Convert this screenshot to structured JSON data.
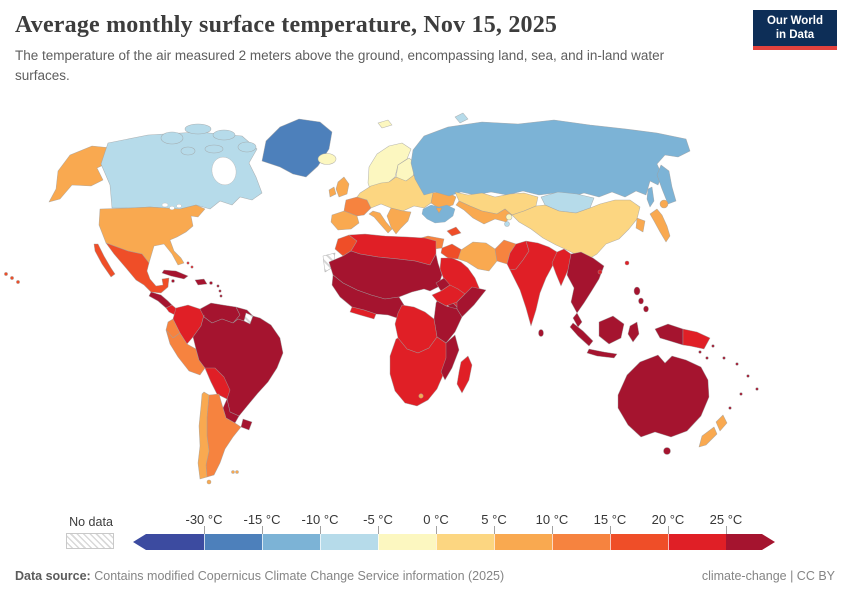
{
  "header": {
    "title": "Average monthly surface temperature, Nov 15, 2025",
    "subtitle": "The temperature of the air measured 2 meters above the ground, encompassing land, sea, and in-land water surfaces.",
    "logo": {
      "line1": "Our World",
      "line2": "in Data",
      "bg_color": "#0d2e57",
      "accent_color": "#e2423d"
    }
  },
  "legend": {
    "no_data_label": "No data",
    "tick_labels": [
      "-30 °C",
      "-15 °C",
      "-10 °C",
      "-5 °C",
      "0 °C",
      "5 °C",
      "10 °C",
      "15 °C",
      "20 °C",
      "25 °C"
    ],
    "band_colors": [
      "#3c4ba0",
      "#4d80bb",
      "#7cb3d6",
      "#b6dbea",
      "#fcf7c0",
      "#fcd681",
      "#f9a950",
      "#f6833f",
      "#ef4e28",
      "#e01f26",
      "#a5142f"
    ],
    "water_color": "#86b5d7"
  },
  "map": {
    "regions": {
      "alaska": 7,
      "canada": 4,
      "canadian-arctic": 4,
      "greenland": 2,
      "iceland": 5,
      "svalbard": 5,
      "novaya-zemlya": 4,
      "usa": 7,
      "baja": 9,
      "mexico": 9,
      "central-america": 11,
      "costa-rica-panama": 10,
      "cuba": 11,
      "hispaniola": 11,
      "jamaica": 11,
      "puerto-rico": 11,
      "lesser-antilles": 11,
      "bahamas": 10,
      "hawaii": 9,
      "colombia": 10,
      "venezuela": 11,
      "guyanas": 11,
      "ecuador": 8,
      "peru": 8,
      "brazil": 11,
      "bolivia": 10,
      "paraguay": 11,
      "uruguay": 11,
      "argentina": 8,
      "chile": 7,
      "tierra-del-fuego": 7,
      "falklands": 7,
      "scandinavia": 5,
      "finland": 5,
      "uk": 7,
      "ireland": 7,
      "france": 8,
      "iberia": 7,
      "central-europe": 6,
      "italy": 7,
      "balkans": 7,
      "ukraine": 7,
      "crimea": 7,
      "russia": 3,
      "sakhalin": 3,
      "kamchatka": 3,
      "black-sea": 3,
      "kazakhstan": 6,
      "mongolia": 4,
      "china": 6,
      "central-asia": 7,
      "kyrgyzstan": 5,
      "tajikistan": 4,
      "caucasus": 9,
      "turkey": 8,
      "syria-iraq": 9,
      "iran": 7,
      "afghanistan": 8,
      "pakistan": 10,
      "india": 10,
      "sri-lanka": 11,
      "bangladesh-myanmar": 10,
      "indochina": 11,
      "malay-peninsula": 11,
      "sumatra": 11,
      "java": 11,
      "borneo": 11,
      "sulawesi": 11,
      "new-guinea-west": 11,
      "papua-new-guinea": 10,
      "philippines": 11,
      "taiwan": 10,
      "hainan": 10,
      "japan": 7,
      "korea": 7,
      "morocco": 9,
      "north-africa": 10,
      "sahel-sahara": 11,
      "west-africa": 11,
      "guinea-coast": 10,
      "eritrea": 11,
      "ethiopia": 10,
      "somalia": 11,
      "kenya-tanzania": 11,
      "drc": 10,
      "southern-africa": 10,
      "mozambique": 11,
      "madagascar": 10,
      "lesotho": 7,
      "arabia": 10,
      "yemen": 11,
      "australia": 11,
      "tasmania": 11,
      "new-zealand": 7,
      "pacific-islands": 11,
      "solomon-islands": 11
    }
  },
  "footer": {
    "source_label": "Data source:",
    "source_text": "Contains modified Copernicus Climate Change Service information (2025)",
    "license_text": "climate-change | CC BY"
  }
}
